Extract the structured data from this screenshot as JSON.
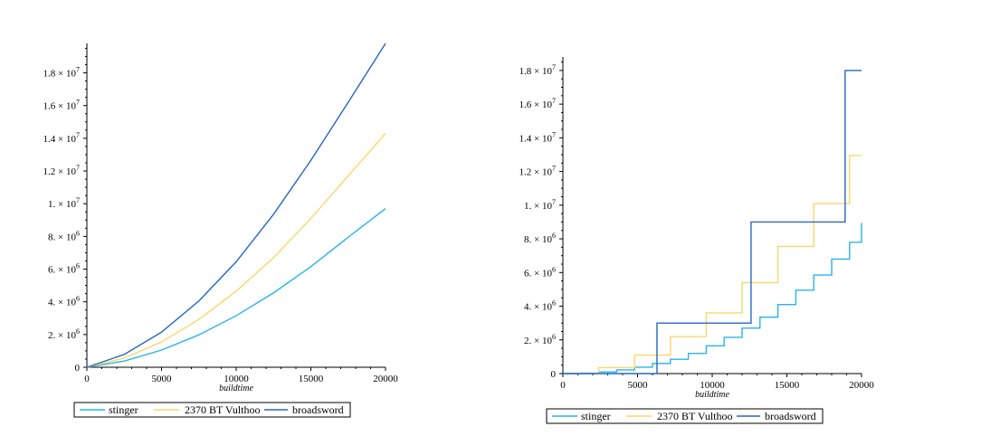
{
  "colors": {
    "stinger": "#28b4ec",
    "vulthoo": "#fcd66a",
    "broadsword": "#2566c4"
  },
  "chart_data": [
    {
      "type": "line",
      "xlabel": "buildtime",
      "ylabel": "",
      "xlim": [
        0,
        20000
      ],
      "ylim": [
        0,
        19800000
      ],
      "x_ticks": [
        "0",
        "5000",
        "10000",
        "15000",
        "20000"
      ],
      "y_ticks": [
        {
          "mantissa": "0",
          "exp": ""
        },
        {
          "mantissa": "2. × 10",
          "exp": "6"
        },
        {
          "mantissa": "4. × 10",
          "exp": "6"
        },
        {
          "mantissa": "6. × 10",
          "exp": "6"
        },
        {
          "mantissa": "8. × 10",
          "exp": "6"
        },
        {
          "mantissa": "1. × 10",
          "exp": "7"
        },
        {
          "mantissa": "1.2 × 10",
          "exp": "7"
        },
        {
          "mantissa": "1.4 × 10",
          "exp": "7"
        },
        {
          "mantissa": "1.6 × 10",
          "exp": "7"
        },
        {
          "mantissa": "1.8 × 10",
          "exp": "7"
        }
      ],
      "series": [
        {
          "name": "stinger",
          "x": [
            0,
            2500,
            5000,
            7500,
            10000,
            12500,
            15000,
            17500,
            20000
          ],
          "y": [
            0,
            380000,
            1050000,
            1980000,
            3150000,
            4550000,
            6150000,
            7950000,
            9700000
          ]
        },
        {
          "name": "2370 BT Vulthoo",
          "x": [
            0,
            2500,
            5000,
            7500,
            10000,
            12500,
            15000,
            17500,
            20000
          ],
          "y": [
            0,
            560000,
            1550000,
            2920000,
            4650000,
            6700000,
            9100000,
            11700000,
            14300000
          ]
        },
        {
          "name": "broadsword",
          "x": [
            0,
            2500,
            5000,
            7500,
            10000,
            12500,
            15000,
            17500,
            20000
          ],
          "y": [
            0,
            780000,
            2150000,
            4050000,
            6450000,
            9350000,
            12650000,
            16200000,
            19800000
          ]
        }
      ],
      "legend": "bottom"
    },
    {
      "type": "line",
      "step": true,
      "xlabel": "buildtime",
      "ylabel": "",
      "xlim": [
        0,
        20000
      ],
      "ylim": [
        0,
        18800000
      ],
      "x_ticks": [
        "0",
        "5000",
        "10000",
        "15000",
        "20000"
      ],
      "y_ticks": [
        {
          "mantissa": "0",
          "exp": ""
        },
        {
          "mantissa": "2. × 10",
          "exp": "6"
        },
        {
          "mantissa": "4. × 10",
          "exp": "6"
        },
        {
          "mantissa": "6. × 10",
          "exp": "6"
        },
        {
          "mantissa": "8. × 10",
          "exp": "6"
        },
        {
          "mantissa": "1. × 10",
          "exp": "7"
        },
        {
          "mantissa": "1.2 × 10",
          "exp": "7"
        },
        {
          "mantissa": "1.4 × 10",
          "exp": "7"
        },
        {
          "mantissa": "1.6 × 10",
          "exp": "7"
        },
        {
          "mantissa": "1.8 × 10",
          "exp": "7"
        }
      ],
      "series": [
        {
          "name": "stinger",
          "x": [
            0,
            1200,
            2400,
            3600,
            4800,
            6000,
            7200,
            8400,
            9600,
            10800,
            12000,
            13200,
            14400,
            15600,
            16800,
            18000,
            19200,
            20000
          ],
          "y": [
            0,
            20000,
            100000,
            220000,
            380000,
            600000,
            850000,
            1200000,
            1650000,
            2150000,
            2700000,
            3350000,
            4100000,
            4950000,
            5850000,
            6800000,
            7800000,
            8950000
          ]
        },
        {
          "name": "2370 BT Vulthoo",
          "x": [
            0,
            2400,
            4800,
            7200,
            9600,
            12000,
            14400,
            16800,
            19200,
            20000
          ],
          "y": [
            0,
            350000,
            1100000,
            2200000,
            3600000,
            5400000,
            7550000,
            10100000,
            12950000,
            12950000
          ]
        },
        {
          "name": "broadsword",
          "x": [
            0,
            6300,
            12600,
            18900,
            20000
          ],
          "y": [
            0,
            3000000,
            9000000,
            18000000,
            18000000
          ]
        }
      ],
      "legend": "bottom"
    }
  ]
}
